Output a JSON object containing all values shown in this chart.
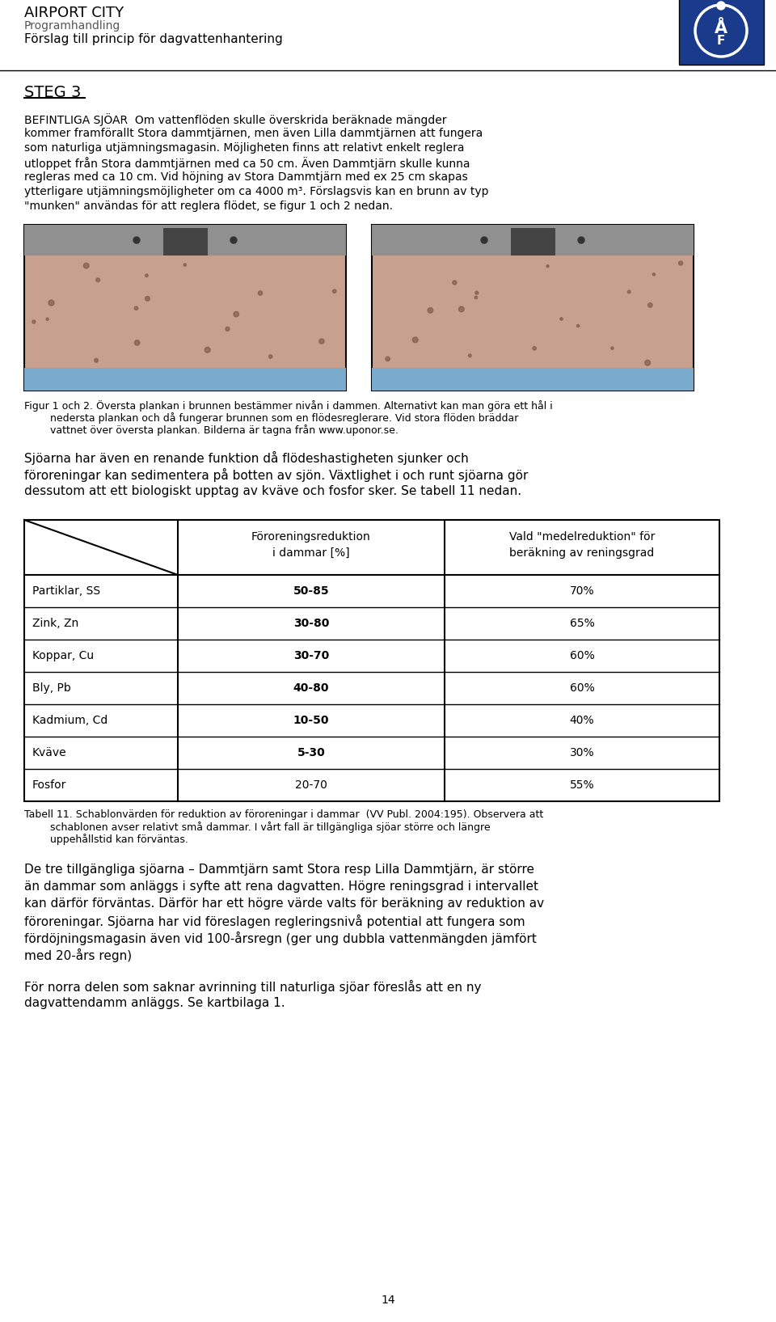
{
  "header_title": "AIRPORT CITY",
  "header_sub1": "Programhandling",
  "header_sub2": "Förslag till princip för dagvattenhantering",
  "section_heading": "STEG 3",
  "para1_lines": [
    "BEFINTLIGA SJÖAR  Om vattenflöden skulle överskrida beräknade mängder",
    "kommer framförallt Stora dammtjärnen, men även Lilla dammtjärnen att fungera",
    "som naturliga utjämningsmagasin. Möjligheten finns att relativt enkelt reglera",
    "utloppet från Stora dammtjärnen med ca 50 cm. Även Dammtjärn skulle kunna",
    "regleras med ca 10 cm. Vid höjning av Stora Dammtjärn med ex 25 cm skapas",
    "ytterligare utjämningsmöjligheter om ca 4000 m³. Förslagsvis kan en brunn av typ",
    "\"munken\" användas för att reglera flödet, se figur 1 och 2 nedan."
  ],
  "cap_lines": [
    "Figur 1 och 2. Översta plankan i brunnen bestämmer nivån i dammen. Alternativt kan man göra ett hål i",
    "        nedersta plankan och då fungerar brunnen som en flödesreglerare. Vid stora flöden bräddar",
    "        vattnet över översta plankan. Bilderna är tagna från www.uponor.se."
  ],
  "para2_lines": [
    "Sjöarna har även en renande funktion då flödeshastigheten sjunker och",
    "föroreningar kan sedimentera på botten av sjön. Växtlighet i och runt sjöarna gör",
    "dessutom att ett biologiskt upptag av kväve och fosfor sker. Se tabell 11 nedan."
  ],
  "table_col1_header1": "Föroreningsreduktion",
  "table_col1_header2": "i dammar [%]",
  "table_col2_header1": "Vald \"medelreduktion\" för",
  "table_col2_header2": "beräkning av reningsgrad",
  "table_rows": [
    [
      "Partiklar, SS",
      "50-85",
      "70%",
      true
    ],
    [
      "Zink, Zn",
      "30-80",
      "65%",
      true
    ],
    [
      "Koppar, Cu",
      "30-70",
      "60%",
      true
    ],
    [
      "Bly, Pb",
      "40-80",
      "60%",
      true
    ],
    [
      "Kadmium, Cd",
      "10-50",
      "40%",
      true
    ],
    [
      "Kväve",
      "5-30",
      "30%",
      true
    ],
    [
      "Fosfor",
      "20-70",
      "55%",
      false
    ]
  ],
  "tbl_cap_lines": [
    "Tabell 11. Schablonvärden för reduktion av föroreningar i dammar  (VV Publ. 2004:195). Observera att",
    "        schablonen avser relativt små dammar. I vårt fall är tillgängliga sjöar större och längre",
    "        uppehållstid kan förväntas."
  ],
  "para3_lines": [
    "De tre tillgängliga sjöarna – Dammtjärn samt Stora resp Lilla Dammtjärn, är större",
    "än dammar som anläggs i syfte att rena dagvatten. Högre reningsgrad i intervallet",
    "kan därför förväntas. Därför har ett högre värde valts för beräkning av reduktion av",
    "föroreningar. Sjöarna har vid föreslagen regleringsnivå potential att fungera som",
    "fördöjningsmagasin även vid 100-årsregn (ger ung dubbla vattenmängden jämfört",
    "med 20-års regn)"
  ],
  "para4_lines": [
    "För norra delen som saknar avrinning till naturliga sjöar föreslås att en ny",
    "dagvattendamm anläggs. Se kartbilaga 1."
  ],
  "page_number": "14",
  "bg_color": "#ffffff",
  "text_color": "#000000",
  "header_color": "#555555",
  "logo_bg": "#1a3a8c"
}
